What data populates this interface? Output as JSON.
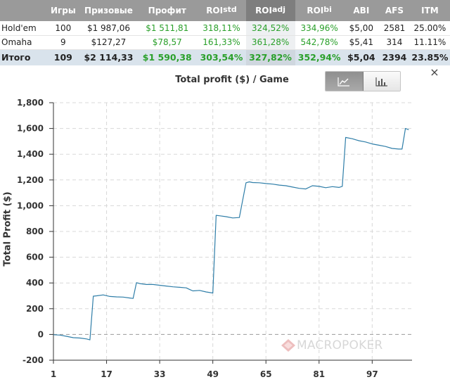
{
  "table": {
    "headers": [
      {
        "label": "",
        "sup": ""
      },
      {
        "label": "Игры",
        "sup": ""
      },
      {
        "label": "Призовые",
        "sup": ""
      },
      {
        "label": "Профит",
        "sup": ""
      },
      {
        "label": "ROI",
        "sup": "std"
      },
      {
        "label": "ROI",
        "sup": "adj"
      },
      {
        "label": "ROI",
        "sup": "bi"
      },
      {
        "label": "ABI",
        "sup": ""
      },
      {
        "label": "AFS",
        "sup": ""
      },
      {
        "label": "ITM",
        "sup": ""
      }
    ],
    "rows": [
      [
        "Hold'em",
        "100",
        "$1 987,06",
        "$1 511,81",
        "318,11%",
        "324,52%",
        "334,96%",
        "$5,00",
        "2581",
        "25.00%"
      ],
      [
        "Omaha",
        "9",
        "$127,27",
        "$78,57",
        "161,33%",
        "361,28%",
        "542,78%",
        "$5,41",
        "314",
        "11.11%"
      ]
    ],
    "total": [
      "Итого",
      "109",
      "$2 114,33",
      "$1 590,38",
      "303,54%",
      "327,82%",
      "352,94%",
      "$5,04",
      "2394",
      "23.85%"
    ],
    "positive_color": "#2aa02a",
    "header_bg": "#9a9a9a"
  },
  "panel": {
    "close_glyph": "×",
    "toggle": {
      "line_icon": "line-chart-icon",
      "bar_icon": "bar-chart-icon"
    },
    "watermark": "MACROPOKER"
  },
  "chart_data": {
    "type": "line",
    "title": "Total profit ($) / Game",
    "xlabel": "",
    "ylabel": "Total Profit ($)",
    "ylim": [
      -200,
      1800
    ],
    "yticks": [
      "-200",
      "0",
      "200",
      "400",
      "600",
      "800",
      "1,000",
      "1,200",
      "1,400",
      "1,600",
      "1,800"
    ],
    "ytick_values": [
      -200,
      0,
      200,
      400,
      600,
      800,
      1000,
      1200,
      1400,
      1600,
      1800
    ],
    "xlim": [
      1,
      109
    ],
    "xticks": [
      "1",
      "17",
      "33",
      "49",
      "65",
      "81",
      "97"
    ],
    "xtick_values": [
      1,
      17,
      33,
      49,
      65,
      81,
      97
    ],
    "grid": true,
    "line_color": "#2f7ea8",
    "series": [
      {
        "x": [
          1,
          3,
          5,
          7,
          9,
          11,
          12,
          13,
          14,
          16,
          18,
          20,
          22,
          24,
          25,
          26,
          27,
          29,
          31,
          33,
          35,
          37,
          39,
          41,
          42,
          43,
          45,
          47,
          49,
          50,
          51,
          53,
          55,
          57,
          59,
          60,
          61,
          63,
          65,
          67,
          69,
          71,
          73,
          75,
          77,
          79,
          81,
          83,
          85,
          87,
          88,
          89,
          91,
          93,
          95,
          97,
          99,
          101,
          103,
          105,
          106,
          107,
          108
        ],
        "y": [
          -2,
          -5,
          -15,
          -25,
          -28,
          -35,
          -42,
          297,
          300,
          307,
          295,
          292,
          290,
          283,
          280,
          402,
          395,
          388,
          388,
          382,
          376,
          370,
          366,
          362,
          350,
          338,
          342,
          330,
          322,
          925,
          922,
          915,
          905,
          908,
          1178,
          1185,
          1180,
          1178,
          1172,
          1168,
          1160,
          1155,
          1145,
          1135,
          1130,
          1155,
          1150,
          1140,
          1148,
          1142,
          1150,
          1530,
          1520,
          1505,
          1495,
          1480,
          1470,
          1460,
          1445,
          1440,
          1440,
          1600,
          1590
        ]
      }
    ]
  }
}
